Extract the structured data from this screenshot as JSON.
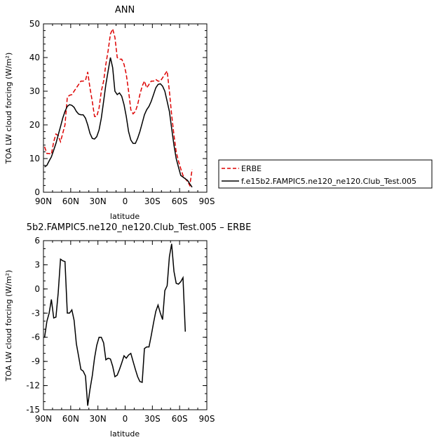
{
  "chart_data": [
    {
      "type": "line",
      "title": "ANN",
      "xlabel": "latitude",
      "ylabel": "TOA LW cloud forcing (W/m²)",
      "xlim": [
        90,
        -90
      ],
      "ylim": [
        0,
        50
      ],
      "xticks": [
        90,
        60,
        30,
        0,
        -30,
        -60,
        -90
      ],
      "xticklabels": [
        "90N",
        "60N",
        "30N",
        "0",
        "30S",
        "60S",
        "90S"
      ],
      "yticks": [
        0,
        10,
        20,
        30,
        40,
        50
      ],
      "yticklabels": [
        "0",
        "10",
        "20",
        "30",
        "40",
        "50"
      ],
      "grid": false,
      "legend_position": "right",
      "series": [
        {
          "name": "ERBE",
          "color": "#dd0000",
          "dash": true,
          "x": [
            88.75,
            86.25,
            83.75,
            81.25,
            78.75,
            76.25,
            73.75,
            71.25,
            68.75,
            66.25,
            63.75,
            61.25,
            58.75,
            56.25,
            53.75,
            51.25,
            48.75,
            46.25,
            43.75,
            41.25,
            38.75,
            36.25,
            33.75,
            31.25,
            28.75,
            26.25,
            23.75,
            21.25,
            18.75,
            16.25,
            13.75,
            11.25,
            8.75,
            6.25,
            3.75,
            1.25,
            -1.25,
            -3.75,
            -6.25,
            -8.75,
            -11.25,
            -13.75,
            -16.25,
            -18.75,
            -21.25,
            -23.75,
            -26.25,
            -28.75,
            -31.25,
            -33.75,
            -36.25,
            -38.75,
            -41.25,
            -43.75,
            -46.25,
            -48.75,
            -51.25,
            -53.75,
            -56.25,
            -58.75,
            -61.25,
            -63.75,
            -66.25,
            -68.75,
            -71.25,
            -73.75,
            -76.25,
            -78.75,
            -81.25,
            -83.75,
            -86.25,
            -88.75
          ],
          "values": [
            13.5,
            11.5,
            11.5,
            11.3,
            15,
            17.3,
            16.8,
            15,
            17.5,
            20,
            28.2,
            28.8,
            29,
            30,
            31,
            32,
            33,
            33,
            33.2,
            35.7,
            31,
            27,
            22.5,
            22.5,
            25,
            30,
            33,
            38,
            42,
            47,
            48.5,
            46,
            40,
            39.5,
            39.5,
            38,
            35,
            30,
            24.5,
            23.3,
            24,
            26,
            29,
            31.5,
            33,
            31,
            32,
            33,
            33,
            33.5,
            33,
            33,
            34,
            35,
            36,
            30,
            23,
            17,
            12,
            9.3,
            7,
            5,
            4,
            3.2,
            2,
            6.8,
            null,
            null,
            null,
            null,
            null,
            null
          ]
        },
        {
          "name": "f.e15b2.FAMPIC5.ne120_ne120.Club_Test.005",
          "color": "#000000",
          "dash": false,
          "x": [
            88.75,
            86.25,
            83.75,
            81.25,
            78.75,
            76.25,
            73.75,
            71.25,
            68.75,
            66.25,
            63.75,
            61.25,
            58.75,
            56.25,
            53.75,
            51.25,
            48.75,
            46.25,
            43.75,
            41.25,
            38.75,
            36.25,
            33.75,
            31.25,
            28.75,
            26.25,
            23.75,
            21.25,
            18.75,
            16.25,
            13.75,
            11.25,
            8.75,
            6.25,
            3.75,
            1.25,
            -1.25,
            -3.75,
            -6.25,
            -8.75,
            -11.25,
            -13.75,
            -16.25,
            -18.75,
            -21.25,
            -23.75,
            -26.25,
            -28.75,
            -31.25,
            -33.75,
            -36.25,
            -38.75,
            -41.25,
            -43.75,
            -46.25,
            -48.75,
            -51.25,
            -53.75,
            -56.25,
            -58.75,
            -61.25,
            -63.75,
            -66.25,
            -68.75,
            -71.25,
            -73.75,
            -76.25,
            -78.75,
            -81.25,
            -83.75,
            -86.25,
            -88.75
          ],
          "values": [
            7.5,
            8,
            9.3,
            10.5,
            12.5,
            14.5,
            17,
            19.5,
            22,
            24,
            25.5,
            26,
            25.8,
            25.2,
            24,
            23.2,
            23,
            23,
            22,
            20,
            17.5,
            16,
            15.8,
            16.5,
            18.5,
            22,
            27,
            32,
            36,
            40,
            37,
            30,
            29,
            29.5,
            28.5,
            26,
            22.5,
            18,
            15.5,
            14.5,
            14.5,
            16,
            18,
            20.5,
            23,
            24.5,
            25.5,
            27,
            29,
            31,
            32,
            32.2,
            31.5,
            30,
            27,
            24,
            19,
            14,
            10,
            7.5,
            5,
            4.5,
            4,
            3.5,
            2.5,
            1.5,
            null,
            null,
            null,
            null,
            null,
            null
          ]
        }
      ]
    },
    {
      "type": "line",
      "title": "5b2.FAMPIC5.ne120_ne120.Club_Test.005 – ERBE",
      "xlabel": "latitude",
      "ylabel": "TOA LW cloud forcing (W/m²)",
      "xlim": [
        90,
        -90
      ],
      "ylim": [
        -15,
        6
      ],
      "xticks": [
        90,
        60,
        30,
        0,
        -30,
        -60,
        -90
      ],
      "xticklabels": [
        "90N",
        "60N",
        "30N",
        "0",
        "30S",
        "60S",
        "90S"
      ],
      "yticks": [
        -15,
        -12,
        -9,
        -6,
        -3,
        0,
        3,
        6
      ],
      "yticklabels": [
        "-15",
        "-12",
        "-9",
        "-6",
        "-3",
        "0",
        "3",
        "6"
      ],
      "grid": false,
      "series": [
        {
          "name": "",
          "color": "#000000",
          "dash": false,
          "x": [
            88.75,
            86.25,
            83.75,
            81.25,
            78.75,
            76.25,
            73.75,
            71.25,
            68.75,
            66.25,
            63.75,
            61.25,
            58.75,
            56.25,
            53.75,
            51.25,
            48.75,
            46.25,
            43.75,
            41.25,
            38.75,
            36.25,
            33.75,
            31.25,
            28.75,
            26.25,
            23.75,
            21.25,
            18.75,
            16.25,
            13.75,
            11.25,
            8.75,
            6.25,
            3.75,
            1.25,
            -1.25,
            -3.75,
            -6.25,
            -8.75,
            -11.25,
            -13.75,
            -16.25,
            -18.75,
            -21.25,
            -23.75,
            -26.25,
            -28.75,
            -31.25,
            -33.75,
            -36.25,
            -38.75,
            -41.25,
            -43.75,
            -46.25,
            -48.75,
            -51.25,
            -53.75,
            -56.25,
            -58.75,
            -61.25,
            -63.75,
            -66.25,
            -68.75,
            -71.25,
            -73.75,
            -76.25,
            -78.75,
            -81.25,
            -83.75,
            -86.25,
            -88.75
          ],
          "values": [
            -6,
            -4,
            -3,
            -1.3,
            -3.6,
            -3.5,
            -0.5,
            3.7,
            3.5,
            3.4,
            -3,
            -3,
            -2.6,
            -3.9,
            -6.8,
            -8.4,
            -10,
            -10.2,
            -10.8,
            -14.5,
            -12.5,
            -10.8,
            -8.6,
            -7,
            -6,
            -6,
            -6.7,
            -8.8,
            -8.6,
            -8.7,
            -9.6,
            -10.9,
            -10.7,
            -10,
            -9.2,
            -8.3,
            -8.6,
            -8.2,
            -8,
            -9,
            -10,
            -10.9,
            -11.5,
            -11.6,
            -7.4,
            -7.2,
            -7.2,
            -5.8,
            -4.2,
            -2.8,
            -2,
            -3,
            -3.8,
            -0.2,
            0.4,
            4,
            5.6,
            2.2,
            0.7,
            0.6,
            0.9,
            1.4,
            -5.3,
            null,
            null,
            null,
            null,
            null,
            null,
            null,
            null,
            null
          ]
        }
      ]
    }
  ]
}
